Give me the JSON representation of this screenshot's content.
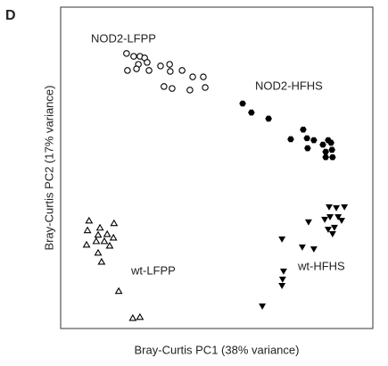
{
  "panel_label": "D",
  "chart_data": {
    "type": "scatter",
    "xlabel": "Bray-Curtis PC1 (38% variance)",
    "ylabel": "Bray-Curtis PC2 (17% variance)",
    "xlim": [
      0,
      100
    ],
    "ylim": [
      0,
      100
    ],
    "series": [
      {
        "name": "NOD2-LFPP",
        "color": "#000000",
        "marker": "circle-open",
        "x": [
          21.1,
          23.4,
          25.4,
          26.9,
          27.7,
          24.9,
          21.4,
          24.3,
          28.3,
          32,
          34.9,
          35.1,
          38.9,
          42.3,
          41.4,
          45.7,
          46.3,
          33.1,
          35.7
        ],
        "y": [
          85.6,
          84.7,
          84.7,
          84.2,
          82.8,
          82.2,
          80.3,
          80.8,
          80.3,
          81.7,
          82.2,
          80,
          80.3,
          78.3,
          74.2,
          78.3,
          75,
          75.3,
          74.7
        ]
      },
      {
        "name": "NOD2-HFHS",
        "color": "#000000",
        "marker": "hexagon",
        "x": [
          58.3,
          61.1,
          66.6,
          73.7,
          77.7,
          78.9,
          81.1,
          79.1,
          84,
          85.7,
          86.6,
          84.9,
          86.9,
          84.9,
          87.1
        ],
        "y": [
          70,
          67.2,
          65.3,
          58.9,
          61.9,
          59.2,
          58.6,
          56.1,
          57.2,
          58.6,
          57.8,
          55,
          55.6,
          53.3,
          53.3
        ]
      },
      {
        "name": "wt-LFPP",
        "color": "#000000",
        "marker": "triangle-up-open",
        "x": [
          9.1,
          12.6,
          17.1,
          8.6,
          12,
          14.9,
          16.9,
          8.3,
          11.4,
          14,
          15.7,
          12,
          13.1,
          18.6,
          23.1,
          25.4
        ],
        "y": [
          33.6,
          31.4,
          32.8,
          30.6,
          29.2,
          29.4,
          28.3,
          26.1,
          27.2,
          27.2,
          25.8,
          23.6,
          20.8,
          11.7,
          3.3,
          3.6
        ]
      },
      {
        "name": "wt-HFHS",
        "color": "#000000",
        "marker": "triangle-down",
        "x": [
          86,
          88.3,
          90.9,
          79.4,
          84.6,
          86.3,
          88.9,
          90,
          85.7,
          87.7,
          87.1,
          81.1,
          70.9,
          77.4,
          71.4,
          71.1,
          70.9,
          64.6
        ],
        "y": [
          37.8,
          37.5,
          37.8,
          33.1,
          33.9,
          34.7,
          34.7,
          33.6,
          30.8,
          31.4,
          29.4,
          24.7,
          27.8,
          25.3,
          17.8,
          15.3,
          13.3,
          6.9
        ]
      }
    ]
  }
}
